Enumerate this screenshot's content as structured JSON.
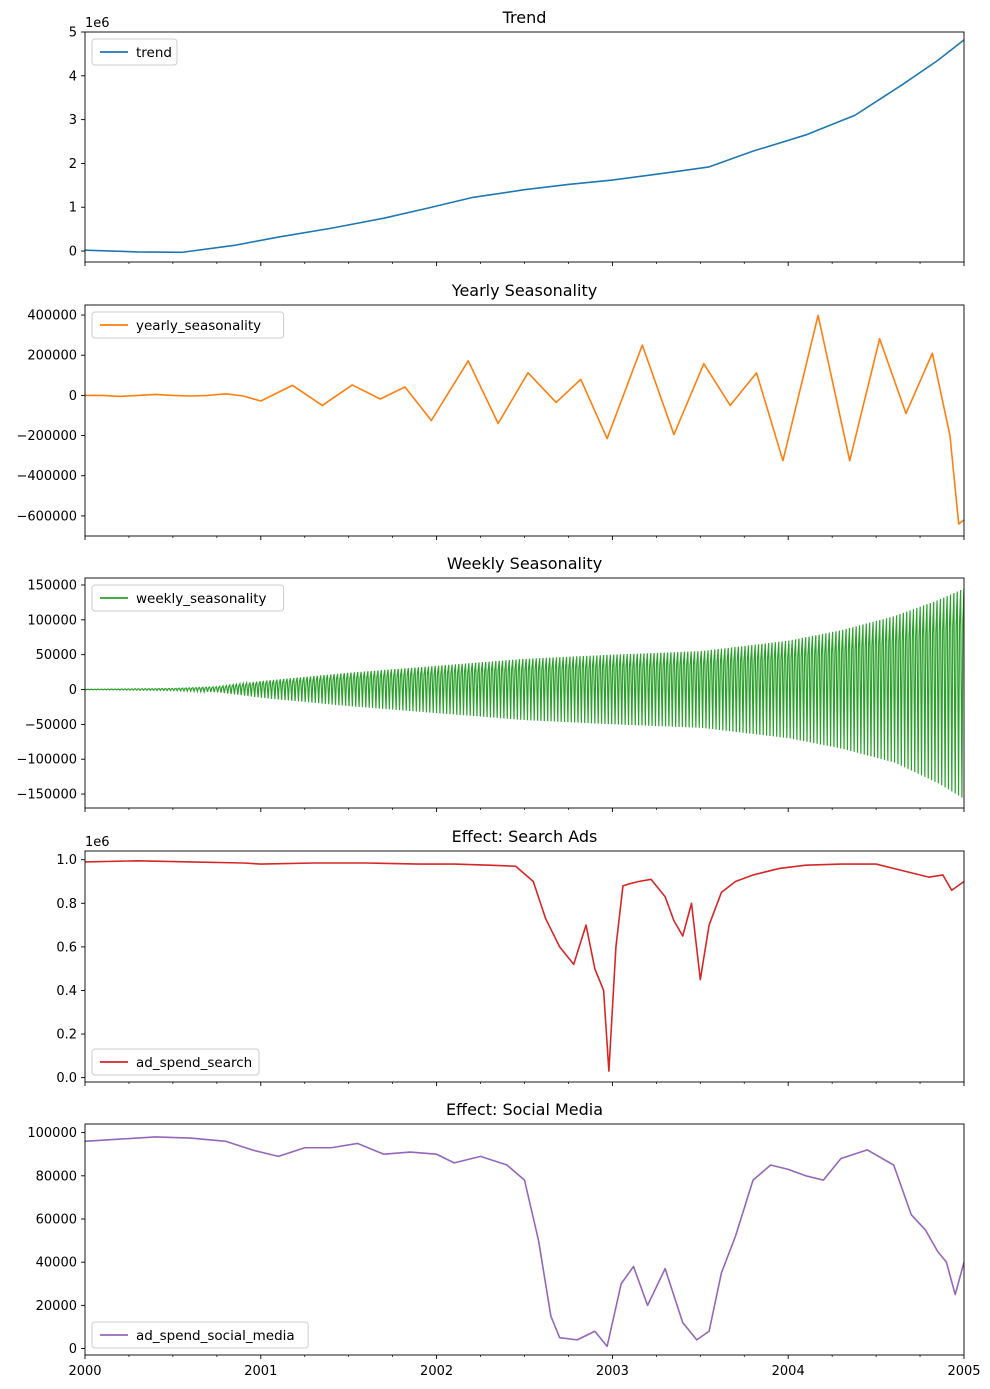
{
  "chart_data": [
    {
      "type": "line",
      "title": "Trend",
      "multiplier": "1e6",
      "ylim": [
        -0.25,
        5.0
      ],
      "yticks": [
        0,
        1,
        2,
        3,
        4,
        5
      ],
      "ytick_labels": [
        "0",
        "1",
        "2",
        "3",
        "4",
        "5"
      ],
      "xlim": [
        2000,
        2005
      ],
      "legend": "upper left",
      "series": [
        {
          "name": "trend",
          "color": "#1f77b4",
          "x": [
            2000,
            2000.3,
            2000.55,
            2000.85,
            2001.1,
            2001.4,
            2001.7,
            2001.95,
            2002.2,
            2002.5,
            2002.75,
            2003.0,
            2003.3,
            2003.55,
            2003.8,
            2004.1,
            2004.38,
            2004.65,
            2004.85,
            2005.0
          ],
          "y": [
            0.02,
            -0.02,
            -0.03,
            0.13,
            0.32,
            0.52,
            0.75,
            0.98,
            1.22,
            1.4,
            1.52,
            1.62,
            1.78,
            1.92,
            2.28,
            2.65,
            3.1,
            3.8,
            4.35,
            4.82
          ]
        }
      ]
    },
    {
      "type": "line",
      "title": "Yearly Seasonality",
      "ylim": [
        -700000,
        450000
      ],
      "yticks": [
        -600000,
        -400000,
        -200000,
        0,
        200000,
        400000
      ],
      "ytick_labels": [
        "−600000",
        "−400000",
        "−200000",
        "0",
        "200000",
        "400000"
      ],
      "xlim": [
        2000,
        2005
      ],
      "legend": "upper left",
      "series": [
        {
          "name": "yearly_seasonality",
          "color": "#ff7f0e",
          "x": [
            2000,
            2000.1,
            2000.2,
            2000.3,
            2000.4,
            2000.5,
            2000.6,
            2000.7,
            2000.8,
            2000.9,
            2001.0,
            2001.18,
            2001.35,
            2001.52,
            2001.68,
            2001.82,
            2001.97,
            2002.18,
            2002.35,
            2002.52,
            2002.68,
            2002.82,
            2002.97,
            2003.17,
            2003.35,
            2003.52,
            2003.67,
            2003.82,
            2003.97,
            2004.17,
            2004.35,
            2004.52,
            2004.67,
            2004.82,
            2004.92,
            2004.97,
            2005.0
          ],
          "y": [
            0,
            0,
            -5000,
            0,
            5000,
            0,
            -3000,
            0,
            8000,
            -3000,
            -28000,
            50000,
            -50000,
            52000,
            -18000,
            42000,
            -125000,
            172000,
            -140000,
            113000,
            -35000,
            80000,
            -215000,
            250000,
            -195000,
            158000,
            -50000,
            112000,
            -325000,
            398000,
            -325000,
            282000,
            -90000,
            210000,
            -200000,
            -640000,
            -620000
          ]
        }
      ]
    },
    {
      "type": "line",
      "title": "Weekly Seasonality",
      "ylim": [
        -170000,
        160000
      ],
      "yticks": [
        -150000,
        -100000,
        -50000,
        0,
        50000,
        100000,
        150000
      ],
      "ytick_labels": [
        "−150000",
        "−100000",
        "−50000",
        "0",
        "50000",
        "100000",
        "150000"
      ],
      "xlim": [
        2000,
        2005
      ],
      "legend": "upper left",
      "series": [
        {
          "name": "weekly_seasonality",
          "color": "#2ca02c",
          "envelope": {
            "x": [
              2000,
              2000.5,
              2000.75,
              2001.0,
              2001.5,
              2002.0,
              2002.5,
              2003.0,
              2003.5,
              2004.0,
              2004.3,
              2004.6,
              2004.85,
              2005.0
            ],
            "upper": [
              300,
              1500,
              4000,
              12000,
              24000,
              34000,
              44000,
              50000,
              55000,
              70000,
              85000,
              105000,
              128000,
              145000
            ],
            "lower": [
              -300,
              -1500,
              -4000,
              -12000,
              -24000,
              -34000,
              -44000,
              -50000,
              -55000,
              -70000,
              -85000,
              -105000,
              -135000,
              -158000
            ]
          }
        }
      ]
    },
    {
      "type": "line",
      "title": "Effect: Search Ads",
      "multiplier": "1e6",
      "ylim": [
        -0.02,
        1.04
      ],
      "yticks": [
        0.0,
        0.2,
        0.4,
        0.6,
        0.8,
        1.0
      ],
      "ytick_labels": [
        "0.0",
        "0.2",
        "0.4",
        "0.6",
        "0.8",
        "1.0"
      ],
      "xlim": [
        2000,
        2005
      ],
      "legend": "lower left",
      "series": [
        {
          "name": "ad_spend_search",
          "color": "#d62728",
          "x": [
            2000,
            2000.3,
            2000.6,
            2000.9,
            2001.0,
            2001.3,
            2001.6,
            2001.9,
            2002.1,
            2002.3,
            2002.45,
            2002.55,
            2002.62,
            2002.7,
            2002.78,
            2002.85,
            2002.9,
            2002.95,
            2002.98,
            2003.02,
            2003.06,
            2003.1,
            2003.15,
            2003.22,
            2003.3,
            2003.35,
            2003.4,
            2003.45,
            2003.5,
            2003.55,
            2003.62,
            2003.7,
            2003.8,
            2003.95,
            2004.1,
            2004.3,
            2004.5,
            2004.65,
            2004.8,
            2004.88,
            2004.93,
            2005.0
          ],
          "y": [
            0.99,
            0.995,
            0.99,
            0.985,
            0.98,
            0.985,
            0.985,
            0.98,
            0.98,
            0.975,
            0.97,
            0.9,
            0.73,
            0.6,
            0.52,
            0.7,
            0.5,
            0.4,
            0.03,
            0.6,
            0.88,
            0.89,
            0.9,
            0.91,
            0.83,
            0.72,
            0.65,
            0.8,
            0.45,
            0.7,
            0.85,
            0.9,
            0.93,
            0.96,
            0.975,
            0.98,
            0.98,
            0.95,
            0.92,
            0.93,
            0.86,
            0.9
          ]
        }
      ]
    },
    {
      "type": "line",
      "title": "Effect: Social Media",
      "ylim": [
        -3000,
        104000
      ],
      "yticks": [
        0,
        20000,
        40000,
        60000,
        80000,
        100000
      ],
      "ytick_labels": [
        "0",
        "20000",
        "40000",
        "60000",
        "80000",
        "100000"
      ],
      "xlim": [
        2000,
        2005
      ],
      "xticks": [
        2000,
        2001,
        2002,
        2003,
        2004,
        2005
      ],
      "xtick_labels": [
        "2000",
        "2001",
        "2002",
        "2003",
        "2004",
        "2005"
      ],
      "legend": "lower left",
      "series": [
        {
          "name": "ad_spend_social_media",
          "color": "#9467bd",
          "x": [
            2000,
            2000.2,
            2000.4,
            2000.6,
            2000.8,
            2000.95,
            2001.1,
            2001.25,
            2001.4,
            2001.55,
            2001.7,
            2001.85,
            2002.0,
            2002.1,
            2002.25,
            2002.4,
            2002.5,
            2002.58,
            2002.65,
            2002.7,
            2002.8,
            2002.9,
            2002.97,
            2003.05,
            2003.12,
            2003.2,
            2003.3,
            2003.4,
            2003.48,
            2003.55,
            2003.62,
            2003.7,
            2003.8,
            2003.9,
            2004.0,
            2004.1,
            2004.2,
            2004.3,
            2004.45,
            2004.6,
            2004.7,
            2004.78,
            2004.85,
            2004.9,
            2004.95,
            2005.0
          ],
          "y": [
            96000,
            97000,
            98000,
            97500,
            96000,
            92000,
            89000,
            93000,
            93000,
            95000,
            90000,
            91000,
            90000,
            86000,
            89000,
            85000,
            78000,
            50000,
            15000,
            5000,
            4000,
            8000,
            1000,
            30000,
            38000,
            20000,
            37000,
            12000,
            4000,
            8000,
            35000,
            52000,
            78000,
            85000,
            83000,
            80000,
            78000,
            88000,
            92000,
            85000,
            62000,
            55000,
            45000,
            40000,
            25000,
            40000
          ]
        }
      ]
    }
  ]
}
